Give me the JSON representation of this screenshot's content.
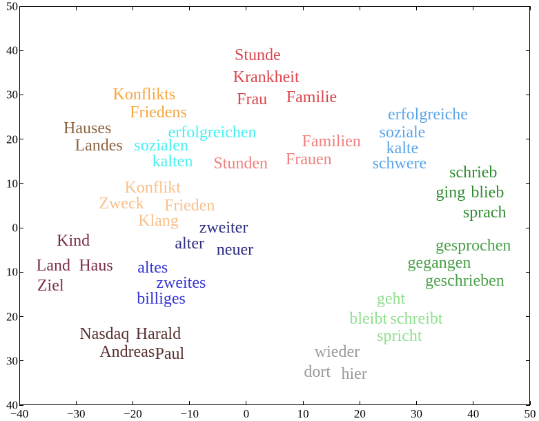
{
  "chart_data": {
    "type": "scatter",
    "title": "",
    "xlabel": "",
    "ylabel": "",
    "xlim": [
      -40,
      50
    ],
    "ylim": [
      -40,
      50
    ],
    "grid": false,
    "x_ticks": [
      "−40",
      "−30",
      "−20",
      "−10",
      "0",
      "10",
      "20",
      "30",
      "40",
      "50"
    ],
    "y_ticks_displayed": [
      "50",
      "40",
      "30",
      "20",
      "10",
      "0",
      "10",
      "20",
      "30",
      "40"
    ],
    "y_ticks_values": [
      50,
      40,
      30,
      20,
      10,
      0,
      -10,
      -20,
      -30,
      -40
    ],
    "series": [
      {
        "name": "red-nouns",
        "color": "#d9474d",
        "points": [
          {
            "label": "Stunde",
            "x": 2,
            "y": 39
          },
          {
            "label": "Krankheit",
            "x": 3.5,
            "y": 34
          },
          {
            "label": "Frau",
            "x": 1,
            "y": 29
          },
          {
            "label": "Familie",
            "x": 11.5,
            "y": 29.5
          }
        ]
      },
      {
        "name": "pink-plural-nouns",
        "color": "#f08080",
        "points": [
          {
            "label": "Familien",
            "x": 15,
            "y": 19.5
          },
          {
            "label": "Frauen",
            "x": 11,
            "y": 15.5
          },
          {
            "label": "Stunden",
            "x": -1,
            "y": 14.5
          }
        ]
      },
      {
        "name": "orange-genitive",
        "color": "#f5a742",
        "points": [
          {
            "label": "Konflikts",
            "x": -18,
            "y": 30
          },
          {
            "label": "Friedens",
            "x": -15.5,
            "y": 26
          }
        ]
      },
      {
        "name": "brown-genitive",
        "color": "#8b6340",
        "points": [
          {
            "label": "Hauses",
            "x": -28,
            "y": 22.5
          },
          {
            "label": "Landes",
            "x": -26,
            "y": 18.5
          }
        ]
      },
      {
        "name": "cyan-adjectives-en",
        "color": "#46f0f0",
        "points": [
          {
            "label": "erfolgreichen",
            "x": -6,
            "y": 21.5
          },
          {
            "label": "sozialen",
            "x": -15,
            "y": 18.5
          },
          {
            "label": "kalten",
            "x": -13,
            "y": 15
          }
        ]
      },
      {
        "name": "blue-adjectives-e",
        "color": "#5aa5e8",
        "points": [
          {
            "label": "erfolgreiche",
            "x": 32,
            "y": 25.5
          },
          {
            "label": "soziale",
            "x": 27.5,
            "y": 21.5
          },
          {
            "label": "kalte",
            "x": 27.5,
            "y": 18
          },
          {
            "label": "schwere",
            "x": 27,
            "y": 14.5
          }
        ]
      },
      {
        "name": "light-orange-nouns",
        "color": "#f8c08a",
        "points": [
          {
            "label": "Konflikt",
            "x": -16.5,
            "y": 9
          },
          {
            "label": "Zweck",
            "x": -22,
            "y": 5.5
          },
          {
            "label": "Frieden",
            "x": -10,
            "y": 5
          },
          {
            "label": "Klang",
            "x": -15.5,
            "y": 1.5
          }
        ]
      },
      {
        "name": "dark-blue-adjectives-er",
        "color": "#2e2e80",
        "points": [
          {
            "label": "zweiter",
            "x": -4,
            "y": 0
          },
          {
            "label": "alter",
            "x": -10,
            "y": -3.5
          },
          {
            "label": "neuer",
            "x": -2,
            "y": -5
          }
        ]
      },
      {
        "name": "blue-adjectives-es",
        "color": "#3535d6",
        "points": [
          {
            "label": "altes",
            "x": -16.5,
            "y": -9
          },
          {
            "label": "zweites",
            "x": -11.5,
            "y": -12.5
          },
          {
            "label": "billiges",
            "x": -15,
            "y": -16
          }
        ]
      },
      {
        "name": "maroon-nouns",
        "color": "#7b2e48",
        "points": [
          {
            "label": "Kind",
            "x": -30.5,
            "y": -3
          },
          {
            "label": "Land",
            "x": -34,
            "y": -8.5
          },
          {
            "label": "Haus",
            "x": -26.5,
            "y": -8.5
          },
          {
            "label": "Ziel",
            "x": -34.5,
            "y": -13
          }
        ]
      },
      {
        "name": "dark-brown-names",
        "color": "#5a3030",
        "points": [
          {
            "label": "Nasdaq",
            "x": -25,
            "y": -24
          },
          {
            "label": "Harald",
            "x": -15.5,
            "y": -24
          },
          {
            "label": "Andreas",
            "x": -21,
            "y": -28
          },
          {
            "label": "Paul",
            "x": -13.5,
            "y": -28.5
          }
        ]
      },
      {
        "name": "green-past-tense",
        "color": "#2e8b2e",
        "points": [
          {
            "label": "schrieb",
            "x": 40,
            "y": 12.5
          },
          {
            "label": "ging",
            "x": 36,
            "y": 8
          },
          {
            "label": "blieb",
            "x": 42.5,
            "y": 8
          },
          {
            "label": "sprach",
            "x": 42,
            "y": 3.5
          }
        ]
      },
      {
        "name": "green-participles",
        "color": "#4aa04a",
        "points": [
          {
            "label": "gesprochen",
            "x": 40,
            "y": -4
          },
          {
            "label": "gegangen",
            "x": 34,
            "y": -8
          },
          {
            "label": "geschrieben",
            "x": 38.5,
            "y": -12
          }
        ]
      },
      {
        "name": "light-green-present",
        "color": "#90e090",
        "points": [
          {
            "label": "geht",
            "x": 25.5,
            "y": -16
          },
          {
            "label": "bleibt",
            "x": 21.5,
            "y": -20.5
          },
          {
            "label": "schreibt",
            "x": 30,
            "y": -20.5
          },
          {
            "label": "spricht",
            "x": 27,
            "y": -24.5
          }
        ]
      },
      {
        "name": "grey-adverbs",
        "color": "#9a9a9a",
        "points": [
          {
            "label": "wieder",
            "x": 16,
            "y": -28
          },
          {
            "label": "dort",
            "x": 12.5,
            "y": -32.5
          },
          {
            "label": "hier",
            "x": 19,
            "y": -33
          }
        ]
      }
    ]
  }
}
